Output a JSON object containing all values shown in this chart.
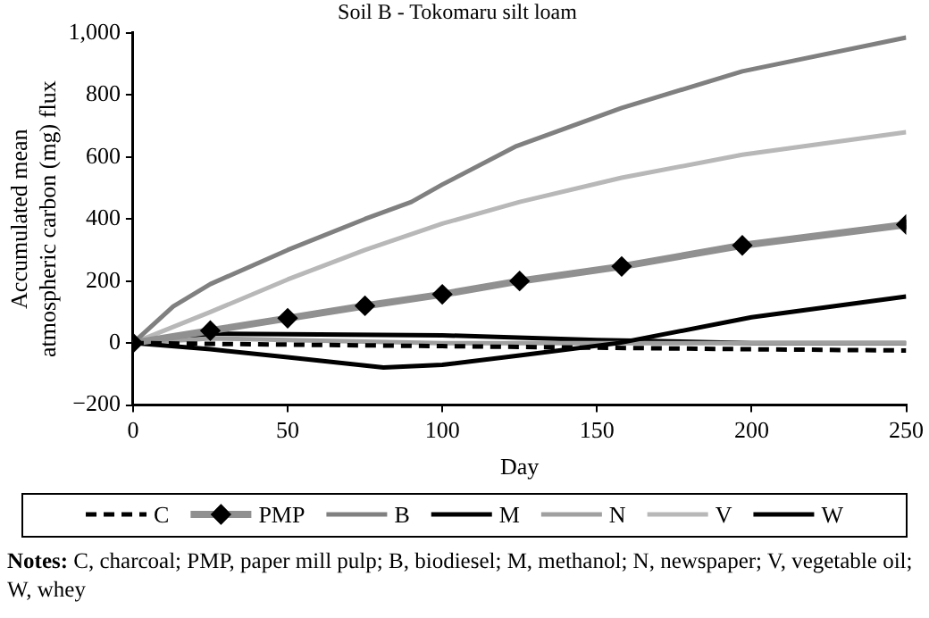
{
  "chart_data": {
    "type": "line",
    "title": "Soil B - Tokomaru silt loam",
    "xlabel": "Day",
    "ylabel": "Accumulated mean atmospheric carbon (mg) flux",
    "xlim": [
      0,
      250
    ],
    "xticks": [
      0,
      50,
      100,
      150,
      200,
      250
    ],
    "ylim": [
      -200,
      1000
    ],
    "yticks": [
      {
        "value": -200,
        "label": "−200"
      },
      0,
      200,
      400,
      600,
      800,
      {
        "value": 1000,
        "label": "1,000"
      }
    ],
    "grid": false,
    "legend": "bottom",
    "marker": "none",
    "series": [
      {
        "name": "C",
        "color": "#000000",
        "line_style": "dashed",
        "x": [
          0,
          50,
          100,
          150,
          200,
          250
        ],
        "values": [
          0,
          -5,
          -10,
          -15,
          -20,
          -24
        ]
      },
      {
        "name": "PMP",
        "color": "#909090",
        "marker": "diamond",
        "x": [
          0,
          25,
          50,
          75,
          100,
          125,
          158,
          197,
          250
        ],
        "values": [
          0,
          40,
          80,
          120,
          157,
          200,
          247,
          315,
          382
        ]
      },
      {
        "name": "B",
        "color": "#808080",
        "x": [
          0,
          13,
          25,
          50,
          75,
          90,
          100,
          124,
          158,
          197,
          250
        ],
        "values": [
          0,
          118,
          190,
          300,
          400,
          455,
          511,
          635,
          758,
          876,
          985
        ]
      },
      {
        "name": "M",
        "color": "#000000",
        "x": [
          0,
          25,
          50,
          81,
          100,
          125,
          157,
          200,
          250
        ],
        "values": [
          0,
          -20,
          -46,
          -79,
          -70,
          -40,
          0,
          83,
          150
        ]
      },
      {
        "name": "N",
        "color": "#a0a0a0",
        "x": [
          0,
          25,
          50,
          100,
          150,
          250
        ],
        "values": [
          0,
          15,
          10,
          0,
          0,
          0
        ]
      },
      {
        "name": "V",
        "color": "#b8b8b8",
        "x": [
          0,
          25,
          50,
          75,
          100,
          125,
          158,
          197,
          250
        ],
        "values": [
          0,
          100,
          205,
          300,
          385,
          455,
          533,
          607,
          680
        ]
      },
      {
        "name": "W",
        "color": "#000000",
        "x": [
          0,
          25,
          100,
          150,
          200,
          250
        ],
        "values": [
          0,
          30,
          25,
          10,
          0,
          0
        ]
      }
    ],
    "annotations": [
      "Notes: C, charcoal; PMP, paper mill pulp; B, biodiesel; M, methanol; N, newspaper; V, vegetable oil; W, whey"
    ]
  }
}
